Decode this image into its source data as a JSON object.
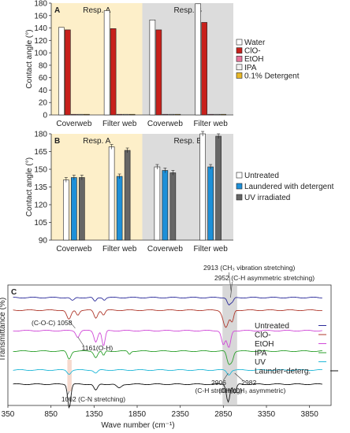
{
  "chart_data": [
    {
      "type": "bar",
      "panel_label": "A",
      "ylabel": "Contact angle (°)",
      "ylim": [
        0,
        180
      ],
      "yticks": [
        0,
        20,
        40,
        60,
        80,
        100,
        120,
        140,
        160,
        180
      ],
      "regions": [
        {
          "name": "Resp. A",
          "color": "#fdefc9"
        },
        {
          "name": "Resp. B",
          "color": "#dcdcdc"
        }
      ],
      "categories": [
        "Coverweb",
        "Filter web",
        "Coverweb",
        "Filter web"
      ],
      "series": [
        {
          "name": "Water",
          "color": "#ffffff",
          "values": [
            141,
            168,
            153,
            179
          ]
        },
        {
          "name": "ClO-",
          "color": "#c8201b",
          "values": [
            137,
            139,
            137,
            149
          ]
        },
        {
          "name": "EtOH",
          "color": "#e8759a",
          "values": [
            0,
            0,
            0,
            0
          ]
        },
        {
          "name": "IPA",
          "color": "#f2f2f2",
          "values": [
            0,
            0,
            0,
            0
          ]
        },
        {
          "name": "0.1% Detergent",
          "color": "#e8b828",
          "values": [
            0,
            0,
            0,
            0
          ]
        }
      ],
      "legend": "right"
    },
    {
      "type": "bar",
      "panel_label": "B",
      "ylabel": "Contact angle (°)",
      "ylim": [
        90,
        180
      ],
      "yticks": [
        90,
        105,
        120,
        135,
        150,
        165,
        180
      ],
      "regions": [
        {
          "name": "Resp. A",
          "color": "#fdefc9"
        },
        {
          "name": "Resp. B",
          "color": "#dcdcdc"
        }
      ],
      "categories": [
        "Coverweb",
        "Filter web",
        "Coverweb",
        "Filter web"
      ],
      "series": [
        {
          "name": "Untreated",
          "color": "#ffffff",
          "values": [
            141,
            169,
            152,
            180
          ]
        },
        {
          "name": "Laundered with detergent",
          "color": "#1e90d8",
          "values": [
            143,
            144,
            149,
            152
          ]
        },
        {
          "name": "UV irradiated",
          "color": "#666666",
          "values": [
            143,
            166,
            147,
            178
          ]
        }
      ],
      "legend": "right"
    },
    {
      "type": "line",
      "panel_label": "C",
      "xlabel": "Wave number (cm⁻¹)",
      "ylabel": "Transmittance (%)",
      "xlim": [
        350,
        4100
      ],
      "xticks": [
        350,
        850,
        1350,
        1850,
        2350,
        2850,
        3350,
        3850
      ],
      "series": [
        {
          "name": "Untreated",
          "color": "#2b2b9a"
        },
        {
          "name": "ClO-",
          "color": "#b03a2e"
        },
        {
          "name": "EtOH",
          "color": "#d048d8"
        },
        {
          "name": "IPA",
          "color": "#2ca02c"
        },
        {
          "name": "UV",
          "color": "#22b8d8"
        },
        {
          "name": "Launder-deterg.",
          "color": "#111111"
        }
      ],
      "annotations": [
        {
          "text": "(C-O-C) 1058"
        },
        {
          "text": "1161(O-H)"
        },
        {
          "text": "1062 (C-N stretching)"
        },
        {
          "text": "2913 (CH₃ vibration stretching)"
        },
        {
          "text": "2952 (C-H asymmetric stretching)"
        },
        {
          "text": "2906"
        },
        {
          "text": "(C-H stretching)"
        },
        {
          "text": "2982"
        },
        {
          "text": "(CH₂/CH₃ asymmetric)"
        }
      ]
    }
  ]
}
